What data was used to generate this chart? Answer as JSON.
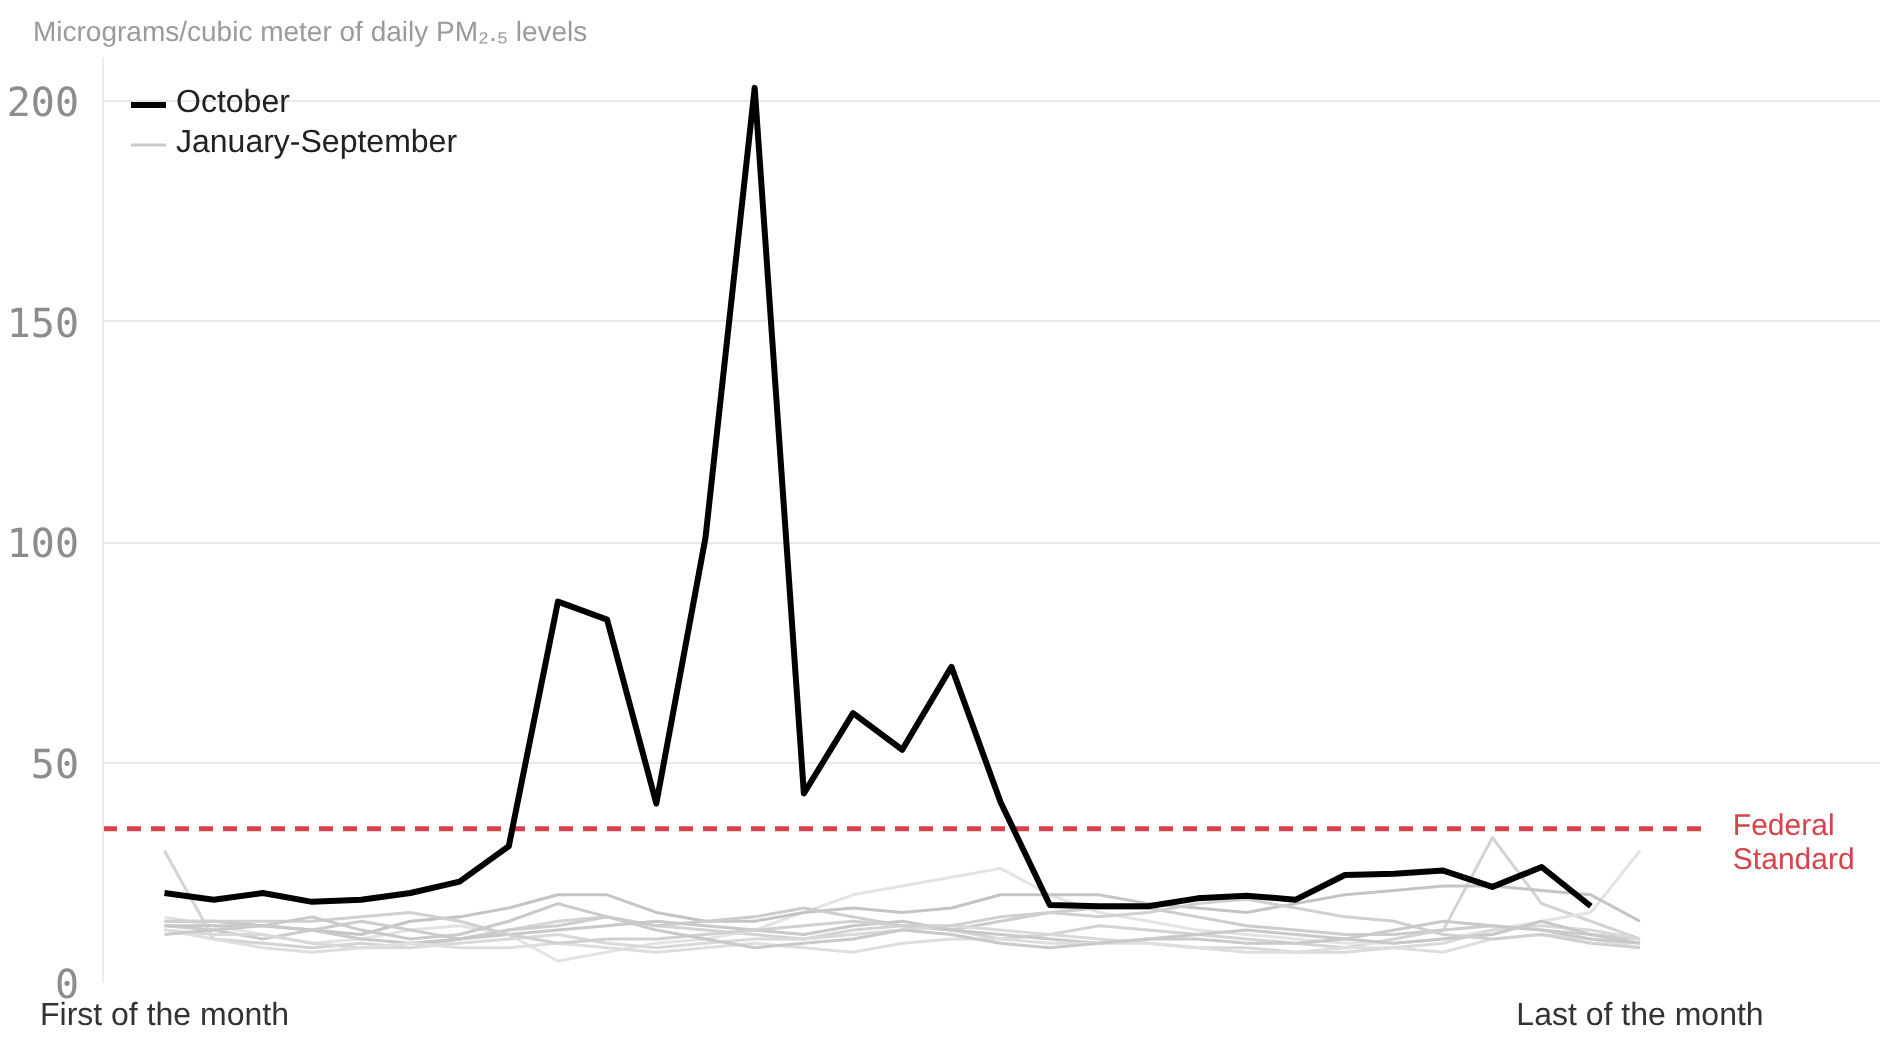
{
  "chart_data": {
    "type": "line",
    "title": "Micrograms/cubic meter of daily PM₂.₅ levels",
    "categories": [
      "First of the month",
      null,
      null,
      null,
      null,
      null,
      null,
      null,
      null,
      null,
      null,
      null,
      null,
      null,
      null,
      null,
      null,
      null,
      null,
      null,
      null,
      null,
      null,
      null,
      null,
      null,
      null,
      null,
      null,
      null,
      "Last of the month"
    ],
    "series": [
      {
        "name": null,
        "color": "#d3d3d3",
        "values": [
          30,
          10,
          9,
          8,
          9,
          8,
          10,
          12,
          14,
          15,
          13,
          12,
          11,
          10,
          12,
          13,
          12,
          10,
          11,
          13,
          12,
          11,
          10,
          9,
          8,
          10,
          12,
          33,
          18,
          14,
          10
        ]
      },
      {
        "name": null,
        "color": "#e3e3e3",
        "values": [
          15,
          13,
          11,
          9,
          10,
          12,
          13,
          11,
          5,
          7,
          9,
          10,
          12,
          16,
          20,
          22,
          24,
          26,
          20,
          16,
          14,
          12,
          11,
          10,
          9,
          9,
          10,
          12,
          14,
          16,
          30
        ]
      },
      {
        "name": null,
        "color": "#c4c4c4",
        "values": [
          14,
          14,
          13,
          12,
          11,
          14,
          15,
          17,
          20,
          20,
          16,
          14,
          14,
          16,
          17,
          16,
          17,
          20,
          20,
          20,
          18,
          17,
          16,
          18,
          20,
          21,
          22,
          22,
          21,
          20,
          14
        ]
      },
      {
        "name": null,
        "color": "#cccccc",
        "values": [
          13,
          12,
          10,
          12,
          14,
          12,
          10,
          12,
          13,
          15,
          13,
          14,
          15,
          17,
          15,
          13,
          12,
          14,
          16,
          17,
          17,
          15,
          13,
          12,
          11,
          11,
          12,
          13,
          12,
          11,
          10
        ]
      },
      {
        "name": null,
        "color": "#d9d9d9",
        "values": [
          12,
          11,
          11,
          9,
          8,
          8,
          9,
          10,
          11,
          9,
          8,
          9,
          10,
          10,
          11,
          12,
          13,
          12,
          11,
          10,
          9,
          8,
          8,
          7,
          7,
          8,
          9,
          12,
          13,
          12,
          10
        ]
      },
      {
        "name": null,
        "color": "#c8c8c8",
        "values": [
          13,
          13,
          13,
          12,
          10,
          9,
          10,
          11,
          12,
          13,
          14,
          13,
          12,
          11,
          13,
          14,
          12,
          11,
          10,
          9,
          10,
          11,
          12,
          11,
          10,
          9,
          10,
          11,
          14,
          11,
          9
        ]
      },
      {
        "name": null,
        "color": "#dedede",
        "values": [
          12,
          10,
          8,
          7,
          8,
          9,
          8,
          8,
          9,
          8,
          7,
          8,
          9,
          8,
          7,
          9,
          10,
          10,
          9,
          9,
          9,
          8,
          7,
          7,
          8,
          8,
          7,
          10,
          11,
          10,
          8
        ]
      },
      {
        "name": null,
        "color": "#d0d0d0",
        "values": [
          14,
          14,
          14,
          14,
          15,
          16,
          14,
          11,
          9,
          10,
          10,
          11,
          12,
          13,
          14,
          13,
          13,
          15,
          16,
          15,
          16,
          18,
          19,
          17,
          15,
          14,
          11,
          10,
          11,
          9,
          8
        ]
      },
      {
        "name": "January-September",
        "color": "#c9c9c9",
        "values": [
          11,
          12,
          13,
          15,
          12,
          10,
          11,
          14,
          18,
          15,
          12,
          10,
          8,
          9,
          10,
          12,
          11,
          9,
          8,
          9,
          10,
          10,
          9,
          9,
          10,
          12,
          14,
          13,
          12,
          10,
          9
        ]
      },
      {
        "name": "October",
        "color": "#000000",
        "values": [
          20.4,
          18.9,
          20.4,
          18.4,
          18.9,
          20.4,
          23,
          31,
          86.5,
          82.4,
          40.7,
          101,
          203,
          43,
          61.2,
          52.9,
          71.7,
          41,
          17.7,
          17.4,
          17.4,
          19.2,
          19.8,
          18.9,
          24.5,
          24.8,
          25.5,
          21.8,
          26.3,
          17.4,
          null
        ]
      }
    ],
    "ylim": [
      0,
      210
    ],
    "yticks": [
      0,
      50,
      100,
      150,
      200
    ],
    "grid": "y",
    "legend": "top left",
    "ref_lines": [
      {
        "axis": "y",
        "value": 35,
        "label": "Federal Standard",
        "color": "#d6434b",
        "line_style": "dashed"
      }
    ]
  }
}
